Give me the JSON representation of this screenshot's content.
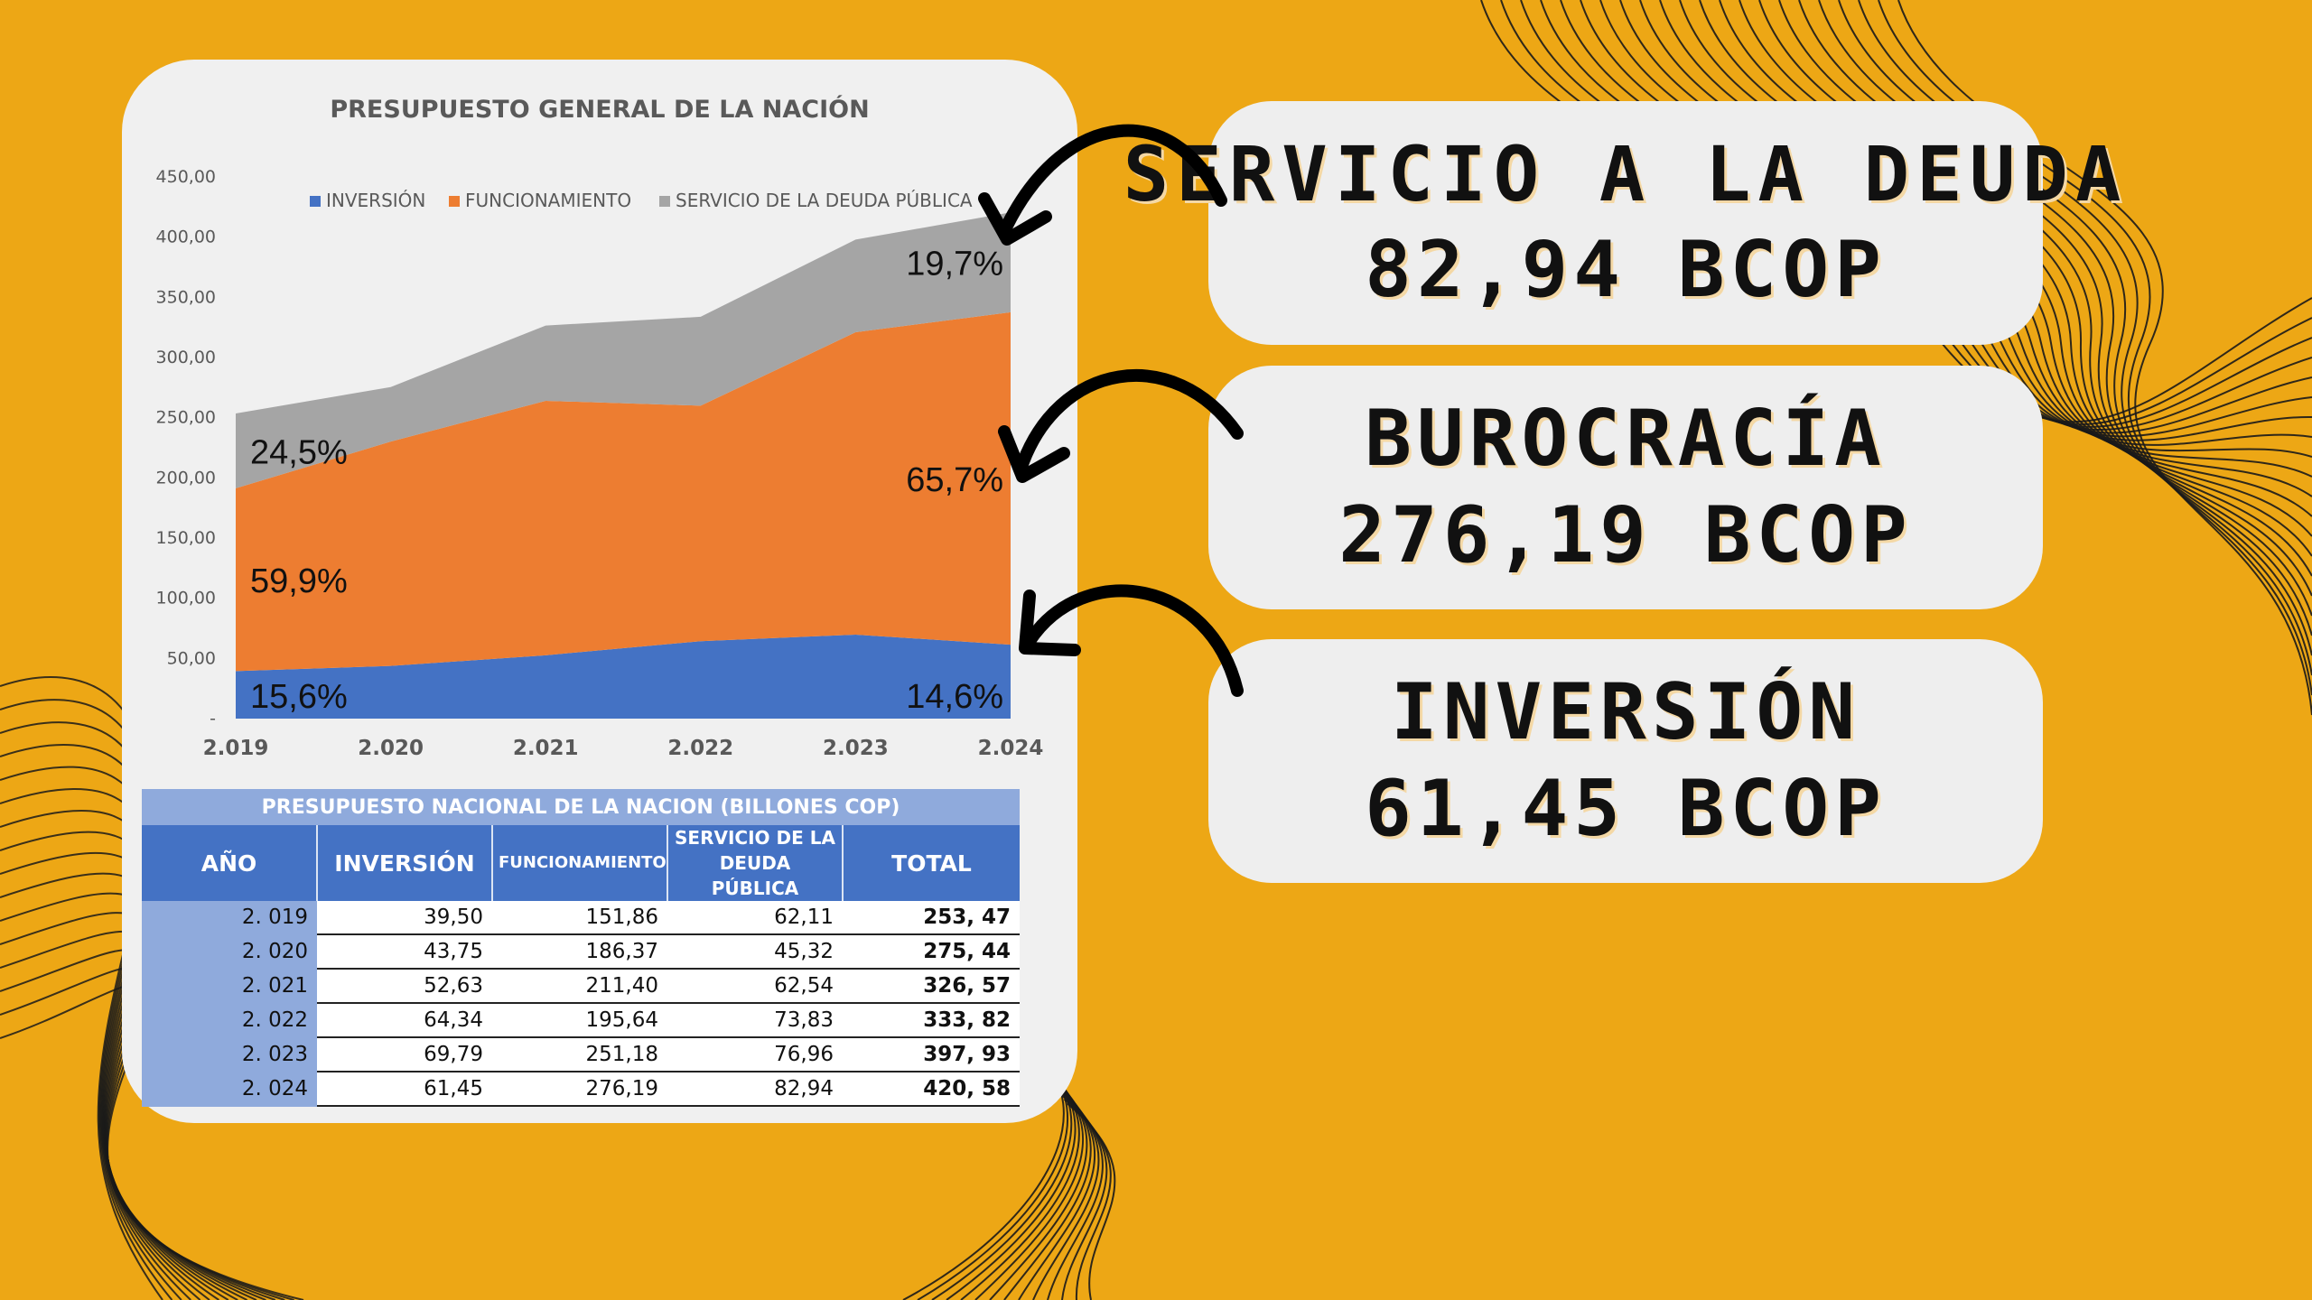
{
  "chart_data": {
    "type": "area",
    "title": "PRESUPUESTO GENERAL DE LA NACIÓN",
    "categories": [
      "2.019",
      "2.020",
      "2.021",
      "2.022",
      "2.023",
      "2.024"
    ],
    "series": [
      {
        "name": "INVERSIÓN",
        "color": "#4472C4",
        "values": [
          39.5,
          43.75,
          52.63,
          64.34,
          69.79,
          61.45
        ]
      },
      {
        "name": "FUNCIONAMIENTO",
        "color": "#ED7D31",
        "values": [
          151.86,
          186.37,
          211.4,
          195.64,
          251.18,
          276.19
        ]
      },
      {
        "name": "SERVICIO DE LA DEUDA PÚBLICA",
        "color": "#A5A5A5",
        "values": [
          62.11,
          45.32,
          62.54,
          73.83,
          76.96,
          82.94
        ]
      }
    ],
    "stacked": true,
    "ylim": [
      0,
      450
    ],
    "yticks": [
      0,
      50,
      100,
      150,
      200,
      250,
      300,
      350,
      400,
      450
    ],
    "ytick_labels": [
      "-",
      "50,00",
      "100,00",
      "150,00",
      "200,00",
      "250,00",
      "300,00",
      "350,00",
      "400,00",
      "450,00"
    ],
    "legend_position": "top",
    "grid": false,
    "annotations": [
      {
        "text": "15,6%",
        "series": 0,
        "index": 0
      },
      {
        "text": "59,9%",
        "series": 1,
        "index": 0
      },
      {
        "text": "24,5%",
        "series": 2,
        "index": 0
      },
      {
        "text": "14,6%",
        "series": 0,
        "index": 5
      },
      {
        "text": "65,7%",
        "series": 1,
        "index": 5
      },
      {
        "text": "19,7%",
        "series": 2,
        "index": 5
      }
    ]
  },
  "table": {
    "title": "PRESUPUESTO NACIONAL DE LA NACION (BILLONES COP)",
    "headers": [
      "AÑO",
      "INVERSIÓN",
      "FUNCIONAMIENTO",
      "SERVICIO DE LA DEUDA PÚBLICA",
      "TOTAL"
    ],
    "rows": [
      [
        "2. 019",
        "39,50",
        "151,86",
        "62,11",
        "253, 47"
      ],
      [
        "2. 020",
        "43,75",
        "186,37",
        "45,32",
        "275, 44"
      ],
      [
        "2. 021",
        "52,63",
        "211,40",
        "62,54",
        "326, 57"
      ],
      [
        "2. 022",
        "64,34",
        "195,64",
        "73,83",
        "333, 82"
      ],
      [
        "2. 023",
        "69,79",
        "251,18",
        "76,96",
        "397, 93"
      ],
      [
        "2. 024",
        "61,45",
        "276,19",
        "82,94",
        "420, 58"
      ]
    ]
  },
  "callouts": [
    {
      "line1": "SERVICIO A LA DEUDA",
      "line2": "82,94 BCOP"
    },
    {
      "line1": "BUROCRACÍA",
      "line2": "276,19 BCOP"
    },
    {
      "line1": "INVERSIÓN",
      "line2": "61,45 BCOP"
    }
  ],
  "colors": {
    "background": "#EDA715",
    "card": "#F0F0F0",
    "table_header": "#4472C4",
    "table_light": "#8FAADC"
  }
}
